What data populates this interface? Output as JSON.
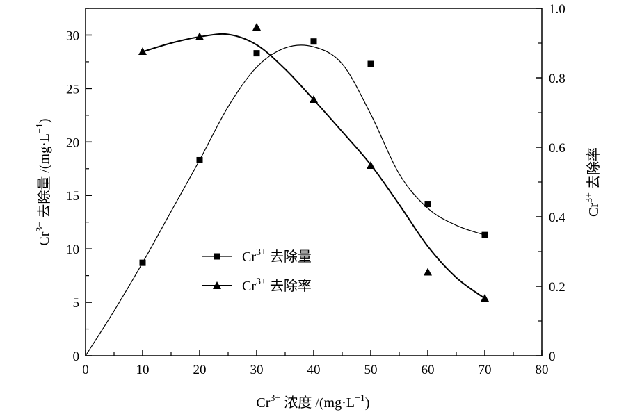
{
  "chart_data": {
    "type": "line",
    "x_axis": {
      "label_main": "Cr",
      "label_sup": "3+",
      "label_rest": " 浓度 /(mg·L",
      "label_sup2": "−1",
      "label_end": ")",
      "range": [
        0,
        80
      ],
      "ticks": [
        "0",
        "10",
        "20",
        "30",
        "40",
        "50",
        "60",
        "70",
        "80"
      ]
    },
    "y_left": {
      "label_main": "Cr",
      "label_sup": "3+",
      "label_rest": " 去除量 /(mg·L",
      "label_sup2": "−1",
      "label_end": ")",
      "range": [
        0,
        32.5
      ],
      "ticks": [
        "0",
        "5",
        "10",
        "15",
        "20",
        "25",
        "30"
      ]
    },
    "y_right": {
      "label_main": "Cr",
      "label_sup": "3+",
      "label_rest": " 去除率",
      "range": [
        0,
        1.0
      ],
      "ticks": [
        "0",
        "0.2",
        "0.4",
        "0.6",
        "0.8",
        "1.0"
      ]
    },
    "series": [
      {
        "name_main": "Cr",
        "name_sup": "3+",
        "name_rest": " 去除量",
        "axis": "left",
        "marker": "square",
        "x": [
          10,
          20,
          30,
          40,
          50,
          60,
          70
        ],
        "y": [
          8.7,
          18.3,
          28.3,
          29.4,
          27.3,
          14.2,
          11.3
        ],
        "curve_x": [
          0,
          5,
          10,
          15,
          20,
          25,
          30,
          35,
          40,
          45,
          50,
          55,
          60,
          65,
          70
        ],
        "curve_y": [
          0,
          4.2,
          8.7,
          13.5,
          18.3,
          23.3,
          27.0,
          28.8,
          28.9,
          27.3,
          22.6,
          17.0,
          13.8,
          12.2,
          11.3
        ]
      },
      {
        "name_main": "Cr",
        "name_sup": "3+",
        "name_rest": " 去除率",
        "axis": "right",
        "marker": "triangle",
        "x": [
          10,
          20,
          30,
          40,
          50,
          60,
          70
        ],
        "y": [
          0.875,
          0.918,
          0.945,
          0.737,
          0.547,
          0.24,
          0.165
        ],
        "curve_x": [
          10,
          15,
          20,
          25,
          30,
          35,
          40,
          45,
          50,
          55,
          60,
          65,
          70
        ],
        "curve_y": [
          0.875,
          0.9,
          0.918,
          0.925,
          0.895,
          0.825,
          0.737,
          0.645,
          0.55,
          0.435,
          0.315,
          0.225,
          0.165
        ]
      }
    ],
    "legend_placement": "center-left"
  }
}
